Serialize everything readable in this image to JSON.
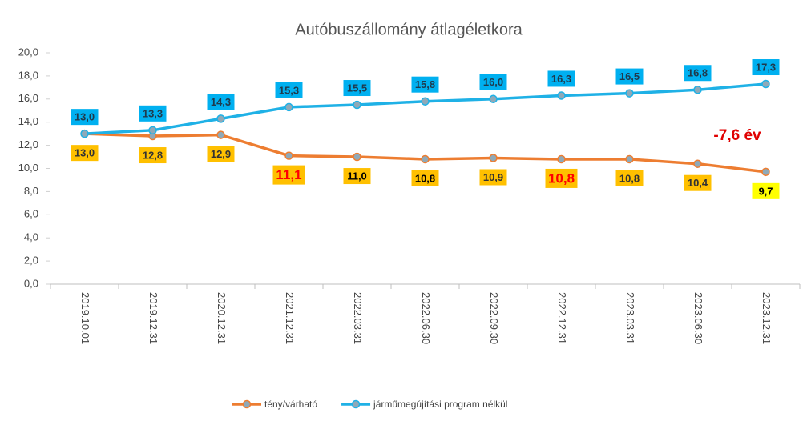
{
  "chart_data": {
    "type": "line",
    "title": "Autóbuszállomány átlagéletkora",
    "categories": [
      "2019.10.01",
      "2019.12.31",
      "2020.12.31",
      "2021.12.31",
      "2022.03.31",
      "2022.06.30",
      "2022.09.30",
      "2022.12.31",
      "2023.03.31",
      "2023.06.30",
      "2023.12.31"
    ],
    "series": [
      {
        "name": "tény/várható",
        "color": "#ed7d31",
        "values": [
          13.0,
          12.8,
          12.9,
          11.1,
          11.0,
          10.8,
          10.9,
          10.8,
          10.8,
          10.4,
          9.7
        ],
        "value_labels": [
          "13,0",
          "12,8",
          "12,9",
          "11,1",
          "11,0",
          "10,8",
          "10,9",
          "10,8",
          "10,8",
          "10,4",
          "9,7"
        ],
        "label_fill": [
          "#ffc000",
          "#ffc000",
          "#ffc000",
          "#ffc000",
          "#ffc000",
          "#ffc000",
          "#ffc000",
          "#ffc000",
          "#ffc000",
          "#ffc000",
          "#ffff00"
        ],
        "label_text_color": [
          "#333333",
          "#333333",
          "#333333",
          "#ff0000",
          "#000000",
          "#000000",
          "#333333",
          "#ff0000",
          "#333333",
          "#333333",
          "#000000"
        ]
      },
      {
        "name": "járműmegújítási program nélkül",
        "color": "#1fb1e6",
        "values": [
          13.0,
          13.3,
          14.3,
          15.3,
          15.5,
          15.8,
          16.0,
          16.3,
          16.5,
          16.8,
          17.3
        ],
        "value_labels": [
          "13,0",
          "13,3",
          "14,3",
          "15,3",
          "15,5",
          "15,8",
          "16,0",
          "16,3",
          "16,5",
          "16,8",
          "17,3"
        ],
        "label_fill": [
          "#00b0f0",
          "#00b0f0",
          "#00b0f0",
          "#00b0f0",
          "#00b0f0",
          "#00b0f0",
          "#00b0f0",
          "#00b0f0",
          "#00b0f0",
          "#00b0f0",
          "#00b0f0"
        ],
        "label_text_color": [
          "#1f3a4d",
          "#1f3a4d",
          "#1f3a4d",
          "#1f3a4d",
          "#1f3a4d",
          "#1f3a4d",
          "#1f3a4d",
          "#1f3a4d",
          "#1f3a4d",
          "#1f3a4d",
          "#1f3a4d"
        ]
      }
    ],
    "annotations": [
      "-7,6 év"
    ],
    "ylim": [
      0,
      20
    ],
    "yticks": [
      {
        "value": 0,
        "label": "0,0"
      },
      {
        "value": 2,
        "label": "2,0"
      },
      {
        "value": 4,
        "label": "4,0"
      },
      {
        "value": 6,
        "label": "6,0"
      },
      {
        "value": 8,
        "label": "8,0"
      },
      {
        "value": 10,
        "label": "10,0"
      },
      {
        "value": 12,
        "label": "12,0"
      },
      {
        "value": 14,
        "label": "14,0"
      },
      {
        "value": 16,
        "label": "16,0"
      },
      {
        "value": 18,
        "label": "18,0"
      },
      {
        "value": 20,
        "label": "20,0"
      }
    ],
    "grid": false,
    "legend": "bottom"
  }
}
